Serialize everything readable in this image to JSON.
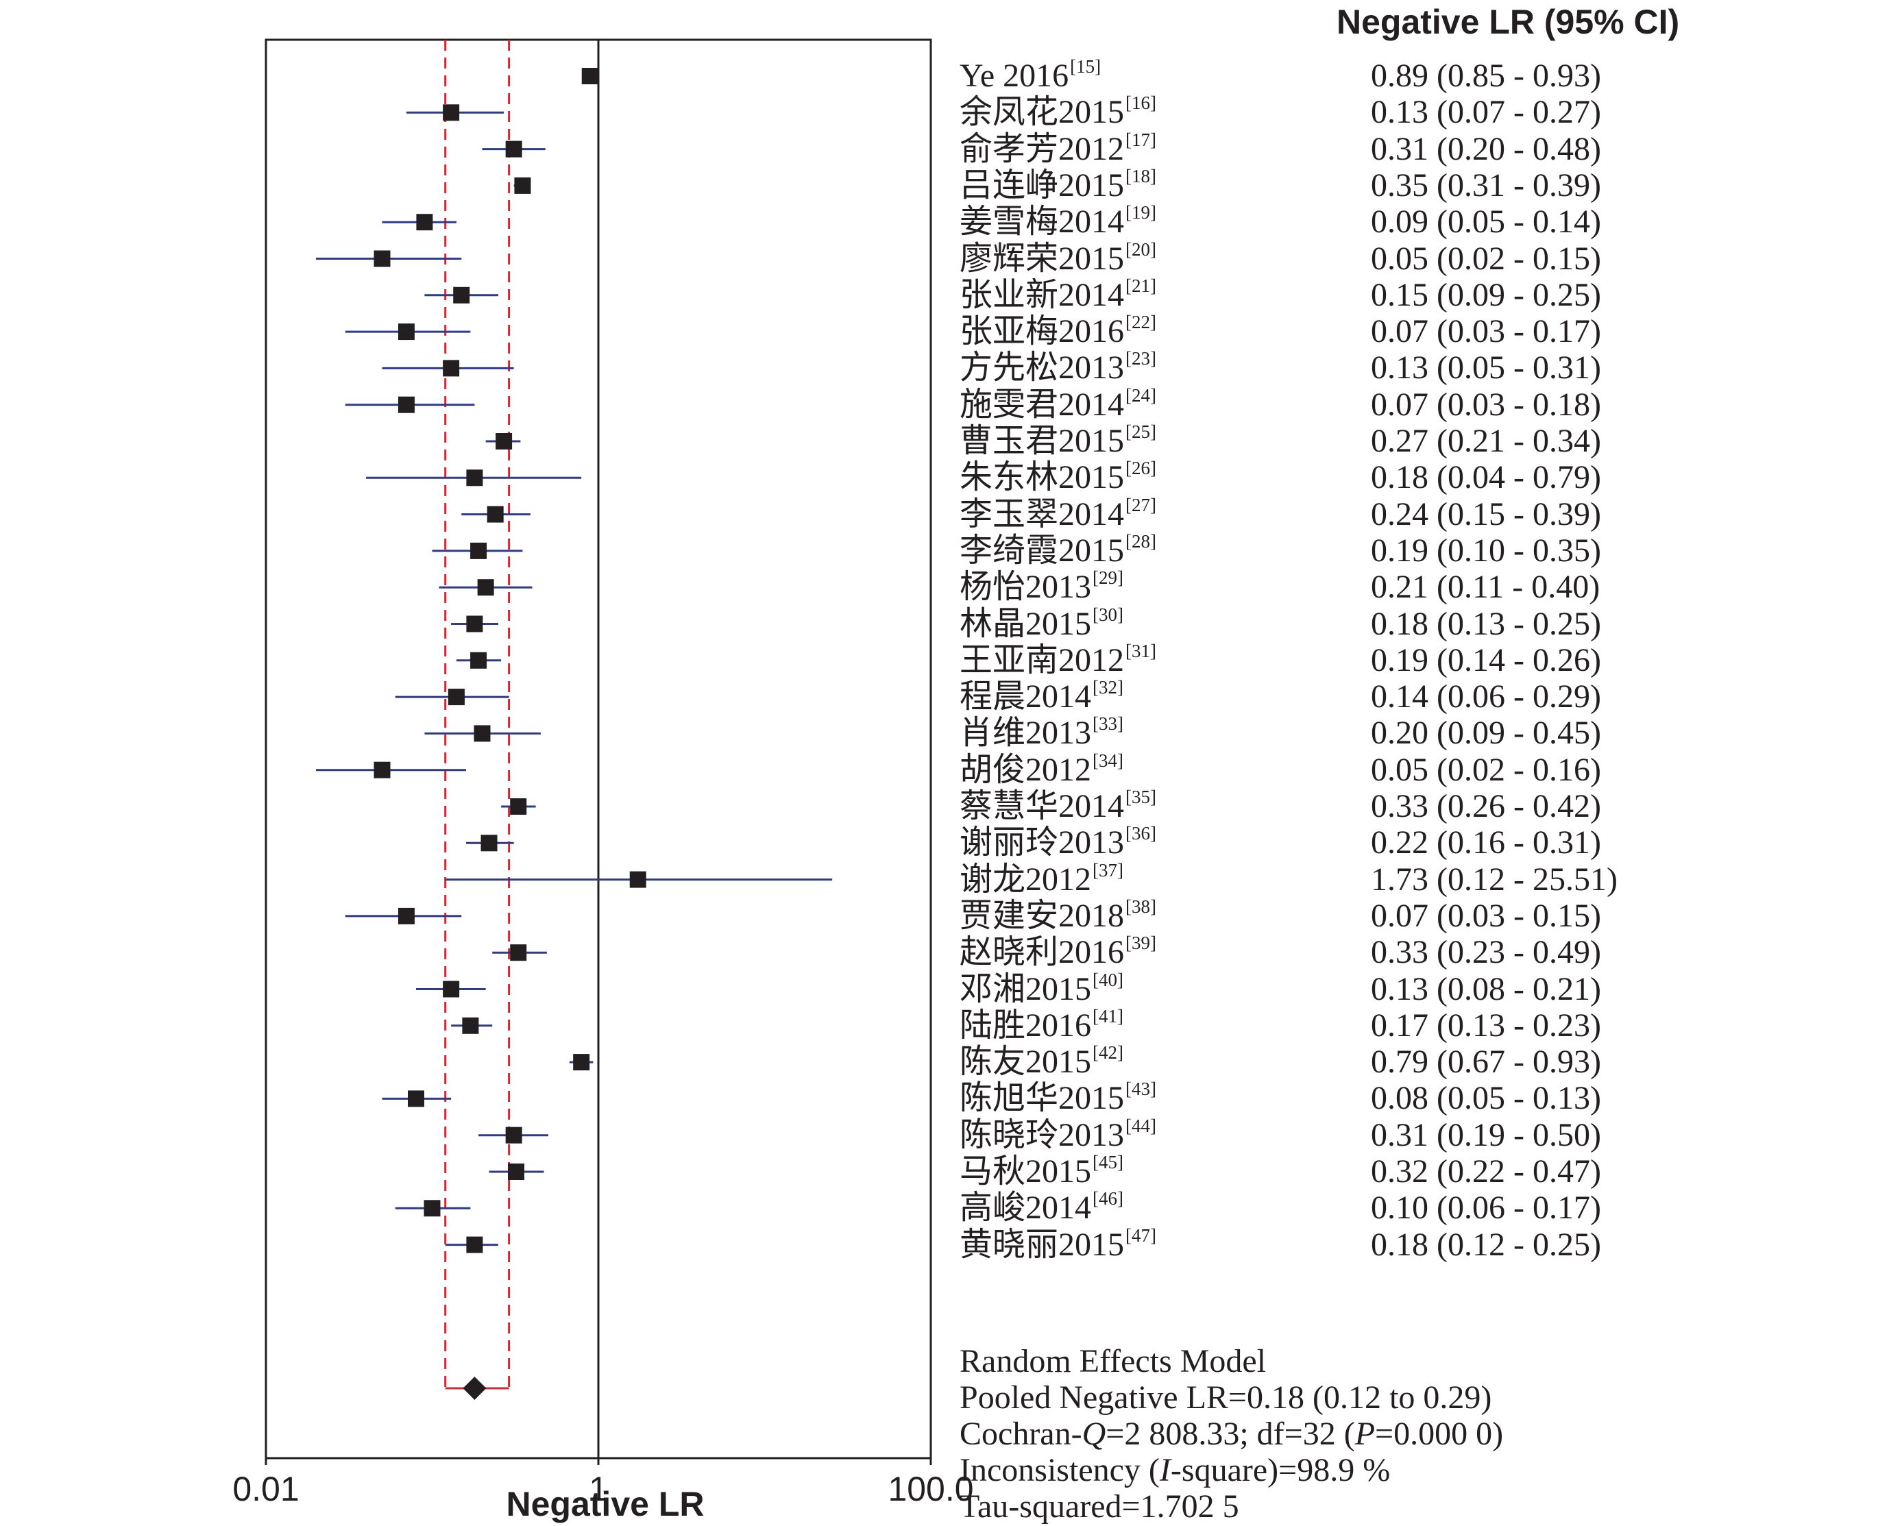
{
  "header": {
    "ci_column": "Negative LR (95% CI)"
  },
  "chart_data": {
    "type": "forest",
    "xlabel": "Negative LR",
    "x_scale": "log",
    "xlim": [
      0.01,
      100.0
    ],
    "x_ticks": [
      {
        "value": 0.01,
        "label": "0.01"
      },
      {
        "value": 1,
        "label": "1"
      },
      {
        "value": 100.0,
        "label": "100.0"
      }
    ],
    "reference_line": 1,
    "pooled_interval": [
      0.12,
      0.29
    ],
    "studies": [
      {
        "name": "Ye 2016",
        "ref": "[15]",
        "est": 0.89,
        "lo": 0.85,
        "hi": 0.93,
        "ci_text": "0.89 (0.85 - 0.93)"
      },
      {
        "name": "余凤花2015",
        "ref": "[16]",
        "est": 0.13,
        "lo": 0.07,
        "hi": 0.27,
        "ci_text": "0.13 (0.07 - 0.27)"
      },
      {
        "name": "俞孝芳2012",
        "ref": "[17]",
        "est": 0.31,
        "lo": 0.2,
        "hi": 0.48,
        "ci_text": "0.31 (0.20 - 0.48)"
      },
      {
        "name": "吕连峥2015",
        "ref": "[18]",
        "est": 0.35,
        "lo": 0.31,
        "hi": 0.39,
        "ci_text": "0.35 (0.31 - 0.39)"
      },
      {
        "name": "姜雪梅2014",
        "ref": "[19]",
        "est": 0.09,
        "lo": 0.05,
        "hi": 0.14,
        "ci_text": "0.09 (0.05 - 0.14)"
      },
      {
        "name": "廖辉荣2015",
        "ref": "[20]",
        "est": 0.05,
        "lo": 0.02,
        "hi": 0.15,
        "ci_text": "0.05 (0.02 - 0.15)"
      },
      {
        "name": "张业新2014",
        "ref": "[21]",
        "est": 0.15,
        "lo": 0.09,
        "hi": 0.25,
        "ci_text": "0.15 (0.09 - 0.25)"
      },
      {
        "name": "张亚梅2016",
        "ref": "[22]",
        "est": 0.07,
        "lo": 0.03,
        "hi": 0.17,
        "ci_text": "0.07 (0.03 - 0.17)"
      },
      {
        "name": "方先松2013",
        "ref": "[23]",
        "est": 0.13,
        "lo": 0.05,
        "hi": 0.31,
        "ci_text": "0.13 (0.05 - 0.31)"
      },
      {
        "name": "施雯君2014",
        "ref": "[24]",
        "est": 0.07,
        "lo": 0.03,
        "hi": 0.18,
        "ci_text": "0.07 (0.03 - 0.18)"
      },
      {
        "name": "曹玉君2015",
        "ref": "[25]",
        "est": 0.27,
        "lo": 0.21,
        "hi": 0.34,
        "ci_text": "0.27 (0.21 - 0.34)"
      },
      {
        "name": "朱东林2015",
        "ref": "[26]",
        "est": 0.18,
        "lo": 0.04,
        "hi": 0.79,
        "ci_text": "0.18 (0.04 - 0.79)"
      },
      {
        "name": "李玉翠2014",
        "ref": "[27]",
        "est": 0.24,
        "lo": 0.15,
        "hi": 0.39,
        "ci_text": "0.24 (0.15 - 0.39)"
      },
      {
        "name": "李绮霞2015",
        "ref": "[28]",
        "est": 0.19,
        "lo": 0.1,
        "hi": 0.35,
        "ci_text": "0.19 (0.10 - 0.35)"
      },
      {
        "name": "杨怡2013",
        "ref": "[29]",
        "est": 0.21,
        "lo": 0.11,
        "hi": 0.4,
        "ci_text": "0.21 (0.11 - 0.40)"
      },
      {
        "name": "林晶2015",
        "ref": "[30]",
        "est": 0.18,
        "lo": 0.13,
        "hi": 0.25,
        "ci_text": "0.18 (0.13 - 0.25)"
      },
      {
        "name": "王亚南2012",
        "ref": "[31]",
        "est": 0.19,
        "lo": 0.14,
        "hi": 0.26,
        "ci_text": "0.19 (0.14 - 0.26)"
      },
      {
        "name": "程晨2014",
        "ref": "[32]",
        "est": 0.14,
        "lo": 0.06,
        "hi": 0.29,
        "ci_text": "0.14 (0.06 - 0.29)"
      },
      {
        "name": "肖维2013",
        "ref": "[33]",
        "est": 0.2,
        "lo": 0.09,
        "hi": 0.45,
        "ci_text": "0.20 (0.09 - 0.45)"
      },
      {
        "name": "胡俊2012",
        "ref": "[34]",
        "est": 0.05,
        "lo": 0.02,
        "hi": 0.16,
        "ci_text": "0.05 (0.02 - 0.16)"
      },
      {
        "name": "蔡慧华2014",
        "ref": "[35]",
        "est": 0.33,
        "lo": 0.26,
        "hi": 0.42,
        "ci_text": "0.33 (0.26 - 0.42)"
      },
      {
        "name": "谢丽玲2013",
        "ref": "[36]",
        "est": 0.22,
        "lo": 0.16,
        "hi": 0.31,
        "ci_text": "0.22 (0.16 - 0.31)"
      },
      {
        "name": "谢龙2012",
        "ref": "[37]",
        "est": 1.73,
        "lo": 0.12,
        "hi": 25.51,
        "ci_text": "1.73 (0.12 - 25.51)"
      },
      {
        "name": "贾建安2018",
        "ref": "[38]",
        "est": 0.07,
        "lo": 0.03,
        "hi": 0.15,
        "ci_text": "0.07 (0.03 - 0.15)"
      },
      {
        "name": "赵晓利2016",
        "ref": "[39]",
        "est": 0.33,
        "lo": 0.23,
        "hi": 0.49,
        "ci_text": "0.33 (0.23 - 0.49)"
      },
      {
        "name": "邓湘2015",
        "ref": "[40]",
        "est": 0.13,
        "lo": 0.08,
        "hi": 0.21,
        "ci_text": "0.13 (0.08 - 0.21)"
      },
      {
        "name": "陆胜2016",
        "ref": "[41]",
        "est": 0.17,
        "lo": 0.13,
        "hi": 0.23,
        "ci_text": "0.17 (0.13 - 0.23)"
      },
      {
        "name": "陈友2015",
        "ref": "[42]",
        "est": 0.79,
        "lo": 0.67,
        "hi": 0.93,
        "ci_text": "0.79 (0.67 - 0.93)"
      },
      {
        "name": "陈旭华2015",
        "ref": "[43]",
        "est": 0.08,
        "lo": 0.05,
        "hi": 0.13,
        "ci_text": "0.08 (0.05 - 0.13)"
      },
      {
        "name": "陈晓玲2013",
        "ref": "[44]",
        "est": 0.31,
        "lo": 0.19,
        "hi": 0.5,
        "ci_text": "0.31 (0.19 - 0.50)"
      },
      {
        "name": "马秋2015",
        "ref": "[45]",
        "est": 0.32,
        "lo": 0.22,
        "hi": 0.47,
        "ci_text": "0.32 (0.22 - 0.47)"
      },
      {
        "name": "高峻2014",
        "ref": "[46]",
        "est": 0.1,
        "lo": 0.06,
        "hi": 0.17,
        "ci_text": "0.10 (0.06 - 0.17)"
      },
      {
        "name": "黄晓丽2015",
        "ref": "[47]",
        "est": 0.18,
        "lo": 0.12,
        "hi": 0.25,
        "ci_text": "0.18 (0.12 - 0.25)"
      }
    ],
    "pooled": {
      "est": 0.18,
      "lo": 0.12,
      "hi": 0.29
    },
    "colors": {
      "ci_line": "#2e3a8c",
      "marker": "#231f20",
      "pooled_band": "#d7262e",
      "axis": "#231f20"
    }
  },
  "summary": {
    "model": "Random Effects Model",
    "pooled": "Pooled Negative LR=0.18 (0.12 to 0.29)",
    "cochran_prefix": "Cochran-",
    "cochran_q": "Q",
    "cochran_mid": "=2 808.33; df=32 (",
    "cochran_p": "P",
    "cochran_suffix": "=0.000 0)",
    "inconsistency_prefix": "Inconsistency (",
    "inconsistency_i": "I",
    "inconsistency_suffix": "-square)=98.9 %",
    "tau": "Tau-squared=1.702 5"
  }
}
